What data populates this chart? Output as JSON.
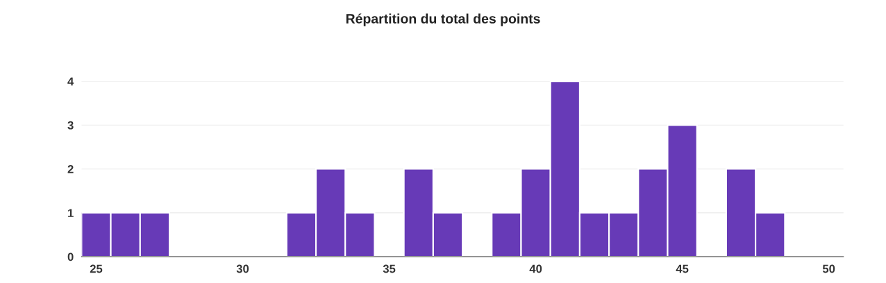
{
  "chart_data": {
    "type": "histogram",
    "title": "Répartition du total des points",
    "bins": [
      24.5,
      25.5,
      26.5,
      27.5,
      28.5,
      29.5,
      30.5,
      31.5,
      32.5,
      33.5,
      34.5,
      35.5,
      36.5,
      37.5,
      38.5,
      39.5,
      40.5,
      41.5,
      42.5,
      43.5,
      44.5,
      45.5,
      46.5,
      47.5,
      48.5
    ],
    "values": [
      1,
      1,
      1,
      0,
      0,
      0,
      0,
      1,
      2,
      1,
      0,
      2,
      1,
      0,
      1,
      2,
      4,
      1,
      1,
      2,
      3,
      0,
      2,
      1
    ],
    "color": "#673ab7",
    "xlim": [
      24.5,
      50.5
    ],
    "xticks": [
      25,
      30,
      35,
      40,
      45,
      50
    ],
    "ylim": [
      0,
      4
    ],
    "yticks": [
      0,
      1,
      2,
      3,
      4
    ],
    "grid": "y",
    "legend": false
  }
}
